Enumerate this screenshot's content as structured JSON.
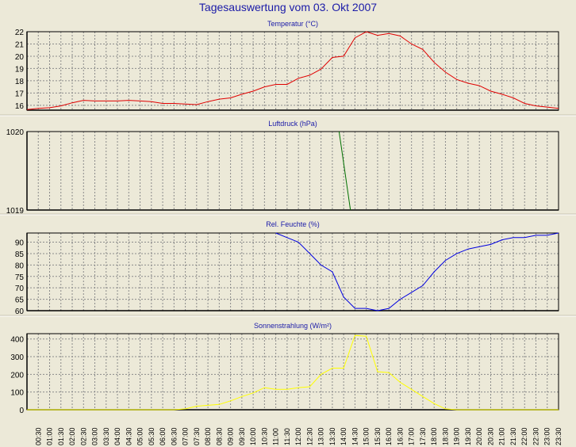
{
  "title": "Tagesauswertung vom 03. Okt 2007",
  "chart_data": [
    {
      "type": "line",
      "title": "Temperatur (°C)",
      "color": "#e00000",
      "ylim": [
        15.6,
        22
      ],
      "yticks": [
        22,
        21,
        20,
        19,
        18,
        17,
        16
      ],
      "x": [
        0,
        0.5,
        1,
        1.5,
        2,
        2.5,
        3,
        3.5,
        4,
        4.5,
        5,
        5.5,
        6,
        6.5,
        7,
        7.5,
        8,
        8.5,
        9,
        9.5,
        10,
        10.5,
        11,
        11.5,
        12,
        12.5,
        13,
        13.5,
        14,
        14.5,
        15,
        15.5,
        16,
        16.5,
        17,
        17.5,
        18,
        18.5,
        19,
        19.5,
        20,
        20.5,
        21,
        21.5,
        22,
        22.5,
        23,
        23.5
      ],
      "values": [
        15.65,
        15.75,
        15.8,
        15.95,
        16.2,
        16.4,
        16.35,
        16.35,
        16.35,
        16.4,
        16.35,
        16.3,
        16.15,
        16.15,
        16.1,
        16.05,
        16.3,
        16.5,
        16.6,
        16.9,
        17.15,
        17.5,
        17.7,
        17.7,
        18.2,
        18.45,
        18.95,
        19.9,
        20.0,
        21.5,
        22.0,
        21.7,
        21.85,
        21.65,
        21.0,
        20.55,
        19.5,
        18.7,
        18.1,
        17.8,
        17.6,
        17.15,
        16.9,
        16.6,
        16.15,
        15.95,
        15.85,
        15.75
      ]
    },
    {
      "type": "line",
      "title": "Luftdruck (hPa)",
      "color": "#007000",
      "ylim": [
        1019,
        1020
      ],
      "yticks": [
        1020,
        1019
      ],
      "x": [
        13.8,
        14.3
      ],
      "values": [
        1020.0,
        1019.0
      ]
    },
    {
      "type": "line",
      "title": "Rel. Feuchte (%)",
      "color": "#0000e0",
      "ylim": [
        60,
        94
      ],
      "yticks": [
        90,
        85,
        80,
        75,
        70,
        65,
        60
      ],
      "x": [
        11,
        11.5,
        12,
        12.5,
        13,
        13.5,
        14,
        14.5,
        15,
        15.5,
        16,
        16.5,
        17,
        17.5,
        18,
        18.5,
        19,
        19.5,
        20,
        20.5,
        21,
        21.5,
        22,
        22.5,
        23,
        23.5
      ],
      "values": [
        94,
        92,
        90,
        85,
        80,
        77,
        66,
        61,
        61,
        60,
        61,
        65,
        68,
        71,
        77,
        82,
        85,
        87,
        88,
        89,
        91,
        92,
        92,
        93,
        93,
        94
      ]
    },
    {
      "type": "line",
      "title": "Sonnenstrahlung (W/m²)",
      "color": "#ffff00",
      "ylim": [
        0,
        430
      ],
      "yticks": [
        400,
        300,
        200,
        100,
        0
      ],
      "x": [
        0,
        1,
        2,
        3,
        4,
        5,
        6,
        6.5,
        7,
        7.5,
        8,
        8.5,
        9,
        9.5,
        10,
        10.5,
        11,
        11.5,
        12,
        12.5,
        13,
        13.5,
        14,
        14.5,
        15,
        15.5,
        16,
        16.5,
        17,
        17.5,
        18,
        18.5,
        19,
        20,
        21,
        22,
        23,
        23.5
      ],
      "values": [
        0,
        0,
        0,
        0,
        0,
        0,
        0,
        0,
        5,
        20,
        25,
        30,
        50,
        75,
        95,
        125,
        115,
        115,
        125,
        130,
        200,
        235,
        235,
        420,
        415,
        215,
        210,
        155,
        115,
        75,
        35,
        5,
        0,
        0,
        0,
        0,
        0,
        0
      ]
    }
  ],
  "x_tick_labels": [
    "00:30",
    "01:00",
    "01:30",
    "02:00",
    "02:30",
    "03:00",
    "03:30",
    "04:00",
    "04:30",
    "05:00",
    "05:30",
    "06:00",
    "06:30",
    "07:00",
    "07:30",
    "08:00",
    "08:30",
    "09:00",
    "09:30",
    "10:00",
    "10:30",
    "11:00",
    "11:30",
    "12:00",
    "12:30",
    "13:00",
    "13:30",
    "14:00",
    "14:30",
    "15:00",
    "15:30",
    "16:00",
    "16:30",
    "17:00",
    "17:30",
    "18:00",
    "18:30",
    "19:00",
    "19:30",
    "20:00",
    "20:30",
    "21:00",
    "21:30",
    "22:00",
    "22:30",
    "23:00",
    "23:30"
  ],
  "grid": true
}
